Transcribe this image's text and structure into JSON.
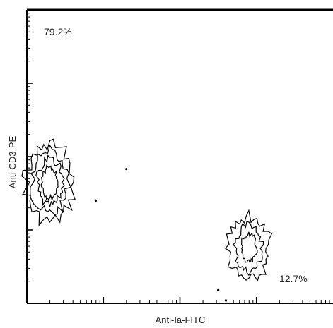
{
  "chart_data": {
    "type": "contour",
    "xlabel": "Anti-Ia-FITC",
    "ylabel": "Anti-CD3-PE",
    "scale": "log",
    "decades": 4,
    "quadrants": [
      {
        "label": "79.2%",
        "position": "top-left"
      },
      {
        "label": "12.7%",
        "position": "bottom-right"
      }
    ],
    "populations": [
      {
        "name": "",
        "center_decades": [
          0.3,
          1.65
        ],
        "levels": [
          {
            "rx": 0.32,
            "ry": 0.55
          },
          {
            "rx": 0.24,
            "ry": 0.44
          },
          {
            "rx": 0.17,
            "ry": 0.33
          },
          {
            "rx": 0.1,
            "ry": 0.22
          }
        ]
      },
      {
        "name": "",
        "center_decades": [
          2.9,
          0.75
        ],
        "levels": [
          {
            "rx": 0.28,
            "ry": 0.45
          },
          {
            "rx": 0.18,
            "ry": 0.32
          },
          {
            "rx": 0.1,
            "ry": 0.2
          }
        ]
      }
    ],
    "stray_points": [
      [
        1.3,
        1.83
      ],
      [
        0.9,
        1.4
      ],
      [
        2.5,
        0.18
      ],
      [
        2.6,
        0.04
      ]
    ],
    "colors": {
      "axis": "#000000",
      "contour": "#000000",
      "text": "#222222"
    }
  }
}
